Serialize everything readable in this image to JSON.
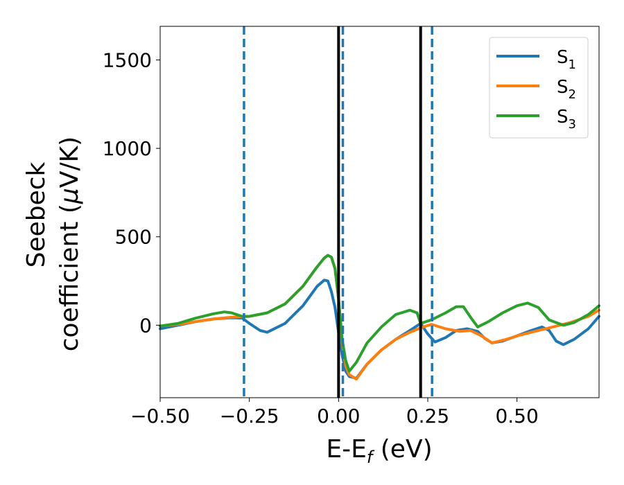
{
  "chart_data": {
    "type": "line",
    "xlabel_main": "E-E",
    "xlabel_sub": "f",
    "xlabel_unit": " (eV)",
    "ylabel_line1": "Seebeck",
    "ylabel_line2_text": "coefficient  (",
    "ylabel_line2_mu": "μ",
    "ylabel_line2_unit": "V/K)",
    "xlim": [
      -0.5,
      0.73
    ],
    "ylim": [
      -410,
      1690
    ],
    "x_ticks": [
      -0.5,
      -0.25,
      0.0,
      0.25,
      0.5
    ],
    "x_tick_labels": [
      "−0.50",
      "−0.25",
      "0.00",
      "0.25",
      "0.50"
    ],
    "y_ticks": [
      0,
      500,
      1000,
      1500
    ],
    "y_tick_labels": [
      "0",
      "500",
      "1000",
      "1500"
    ],
    "grid": false,
    "legend_position": "top-right",
    "vlines_solid": [
      0.0,
      0.23
    ],
    "vlines_dashed": [
      -0.265,
      0.012,
      0.262
    ],
    "series": [
      {
        "name": "S",
        "subscript": "1",
        "color": "#1f77b4",
        "x": [
          -0.5,
          -0.45,
          -0.4,
          -0.35,
          -0.3,
          -0.27,
          -0.25,
          -0.22,
          -0.2,
          -0.15,
          -0.1,
          -0.06,
          -0.04,
          -0.03,
          -0.02,
          -0.01,
          0.0,
          0.01,
          0.02,
          0.03,
          0.05,
          0.08,
          0.12,
          0.16,
          0.2,
          0.23,
          0.25,
          0.27,
          0.3,
          0.33,
          0.36,
          0.39,
          0.41,
          0.43,
          0.46,
          0.5,
          0.54,
          0.57,
          0.59,
          0.61,
          0.63,
          0.66,
          0.7,
          0.73
        ],
        "y": [
          -20,
          0,
          20,
          35,
          42,
          40,
          10,
          -30,
          -40,
          10,
          110,
          220,
          255,
          250,
          190,
          100,
          -40,
          -170,
          -260,
          -290,
          -300,
          -220,
          -140,
          -80,
          -30,
          10,
          -50,
          -95,
          -70,
          -30,
          -20,
          -35,
          -75,
          -100,
          -90,
          -60,
          -30,
          -10,
          -30,
          -90,
          -110,
          -80,
          -20,
          50
        ]
      },
      {
        "name": "S",
        "subscript": "2",
        "color": "#ff7f0e",
        "x": [
          -0.5,
          -0.45,
          -0.4,
          -0.35,
          -0.3,
          -0.25,
          -0.2,
          -0.15,
          -0.1,
          -0.06,
          -0.04,
          -0.03,
          -0.02,
          -0.01,
          0.0,
          0.01,
          0.02,
          0.03,
          0.05,
          0.08,
          0.12,
          0.16,
          0.2,
          0.23,
          0.26,
          0.3,
          0.34,
          0.37,
          0.4,
          0.43,
          0.47,
          0.51,
          0.55,
          0.6,
          0.65,
          0.7,
          0.73
        ],
        "y": [
          -5,
          5,
          20,
          35,
          45,
          50,
          70,
          120,
          220,
          330,
          380,
          395,
          385,
          320,
          150,
          -100,
          -230,
          -280,
          -305,
          -220,
          -140,
          -80,
          -40,
          -15,
          5,
          -20,
          -35,
          -30,
          -60,
          -100,
          -80,
          -55,
          -35,
          -10,
          15,
          50,
          85
        ]
      },
      {
        "name": "S",
        "subscript": "3",
        "color": "#2ca02c",
        "x": [
          -0.5,
          -0.45,
          -0.4,
          -0.35,
          -0.32,
          -0.3,
          -0.27,
          -0.25,
          -0.2,
          -0.15,
          -0.1,
          -0.06,
          -0.04,
          -0.03,
          -0.02,
          -0.01,
          0.0,
          0.01,
          0.02,
          0.03,
          0.05,
          0.08,
          0.12,
          0.16,
          0.2,
          0.22,
          0.23,
          0.26,
          0.3,
          0.33,
          0.35,
          0.37,
          0.39,
          0.42,
          0.46,
          0.5,
          0.53,
          0.56,
          0.59,
          0.63,
          0.66,
          0.7,
          0.73
        ],
        "y": [
          -5,
          10,
          40,
          65,
          75,
          70,
          50,
          50,
          70,
          120,
          220,
          330,
          380,
          395,
          385,
          320,
          150,
          -80,
          -200,
          -260,
          -210,
          -100,
          -10,
          60,
          85,
          70,
          10,
          30,
          70,
          105,
          105,
          45,
          -10,
          20,
          70,
          110,
          125,
          100,
          30,
          0,
          15,
          60,
          110
        ]
      }
    ]
  }
}
